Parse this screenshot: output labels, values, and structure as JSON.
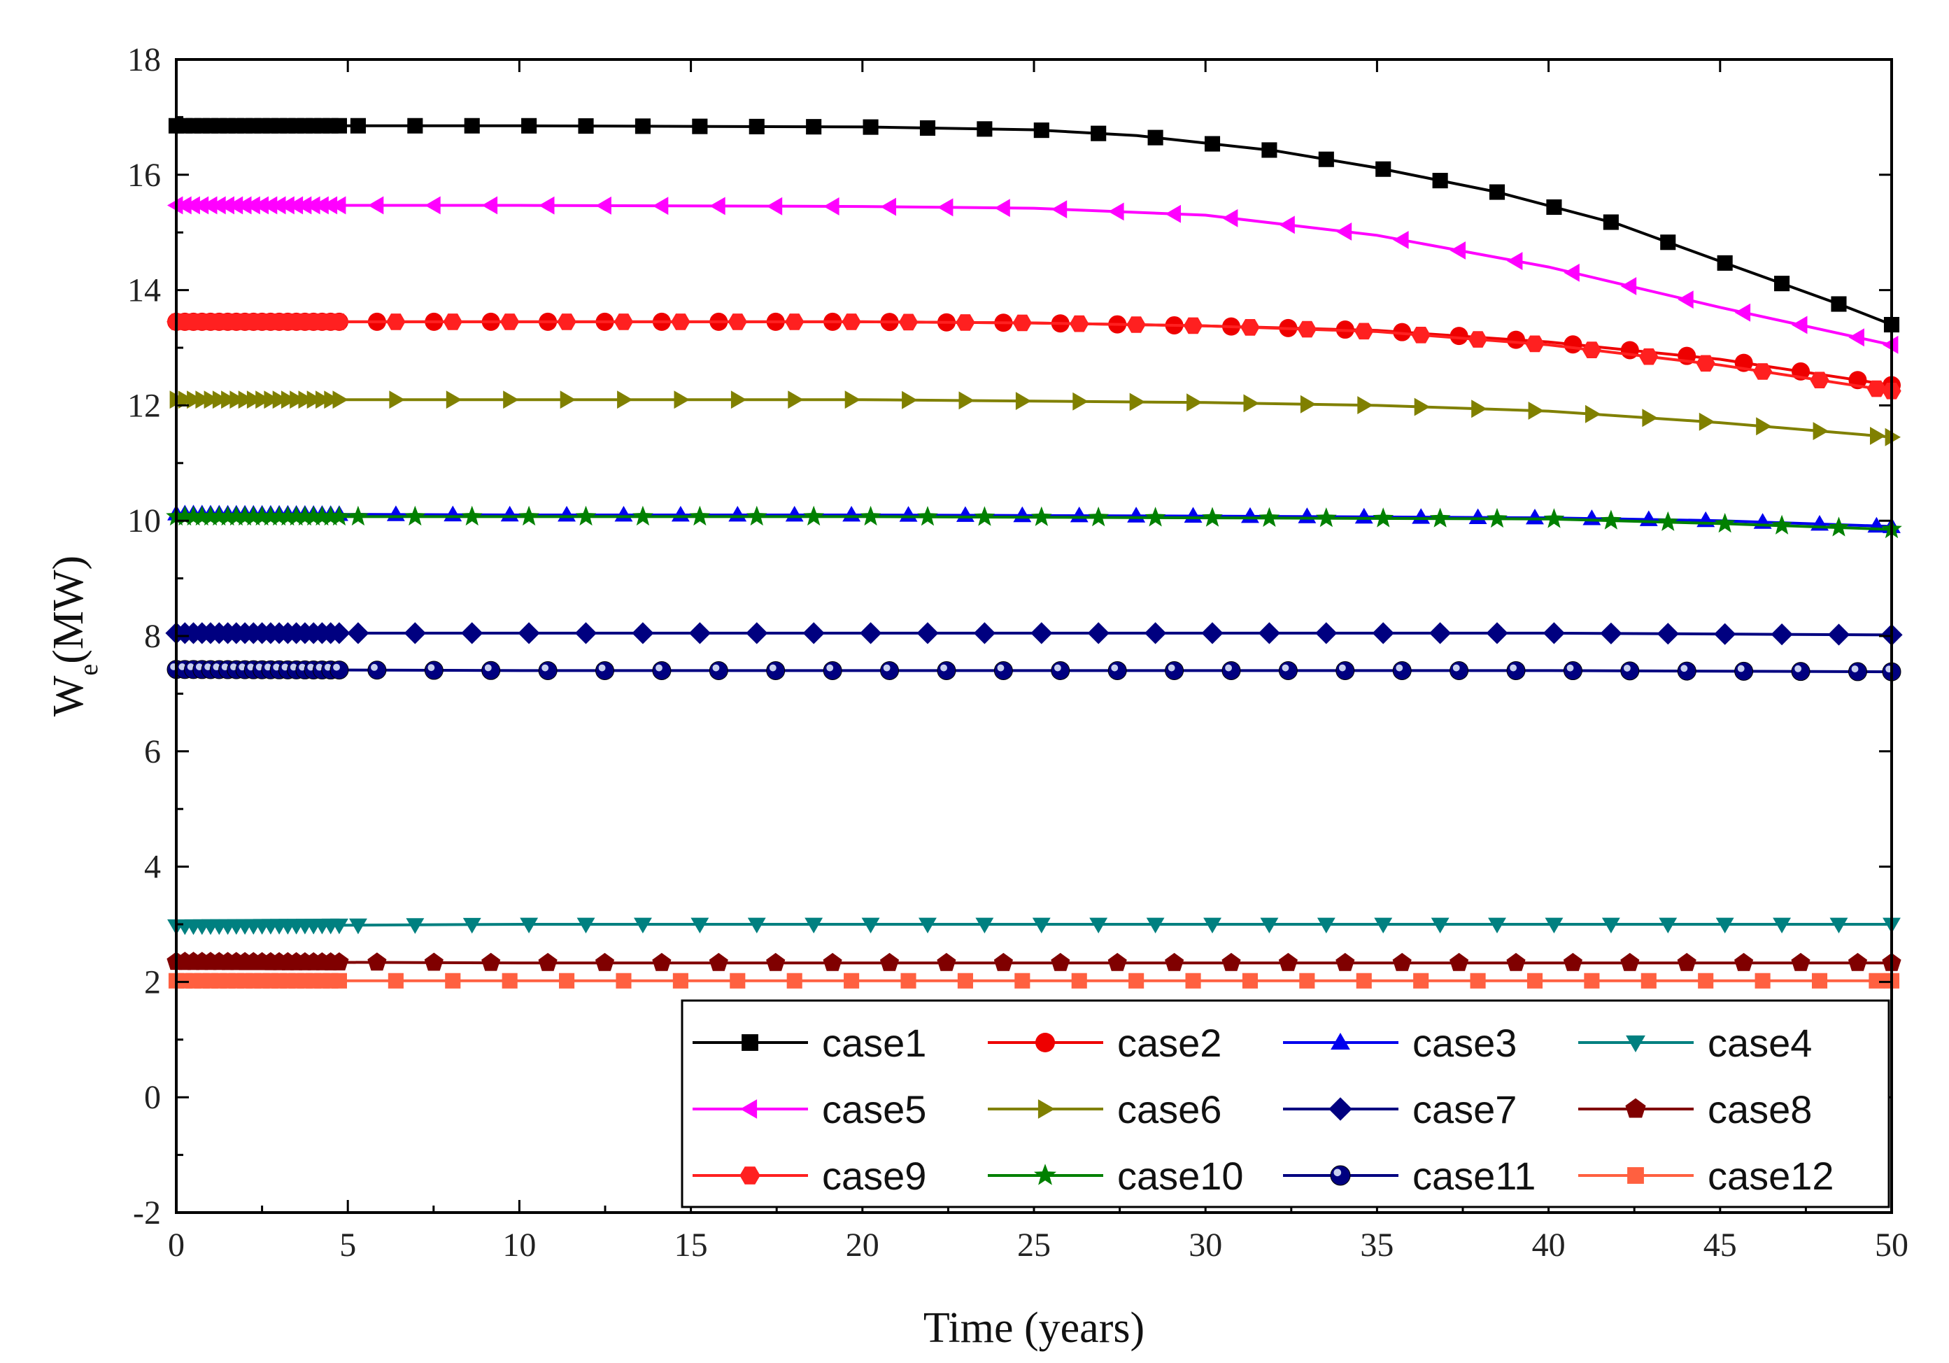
{
  "chart_data": {
    "type": "line",
    "title": "",
    "xlabel": "Time (years)",
    "ylabel": "(MW)",
    "ylabel_main": "W",
    "ylabel_sub": "e",
    "xlim": [
      0,
      50
    ],
    "ylim": [
      -2,
      18
    ],
    "xticks": [
      0,
      5,
      10,
      15,
      20,
      25,
      30,
      35,
      40,
      45,
      50
    ],
    "yticks": [
      -2,
      0,
      2,
      4,
      6,
      8,
      10,
      12,
      14,
      16,
      18
    ],
    "grid": false,
    "legend_position": "bottom-right",
    "series": [
      {
        "name": "case1",
        "color": "#000000",
        "marker": "square",
        "x": [
          0,
          10,
          20,
          25,
          28,
          30,
          32,
          35,
          38.5,
          42,
          45,
          48.5,
          50
        ],
        "y": [
          16.85,
          16.85,
          16.83,
          16.78,
          16.68,
          16.55,
          16.42,
          16.12,
          15.7,
          15.15,
          14.5,
          13.75,
          13.4
        ]
      },
      {
        "name": "case2",
        "color": "#ee0000",
        "marker": "circle",
        "x": [
          0,
          10,
          20,
          25,
          30,
          35,
          40,
          45,
          50
        ],
        "y": [
          13.45,
          13.45,
          13.45,
          13.43,
          13.38,
          13.3,
          13.1,
          12.8,
          12.35
        ]
      },
      {
        "name": "case3",
        "color": "#0000ee",
        "marker": "triangle-up",
        "x": [
          0,
          10,
          20,
          30,
          40,
          45,
          50
        ],
        "y": [
          10.12,
          10.1,
          10.1,
          10.08,
          10.05,
          10.0,
          9.9
        ]
      },
      {
        "name": "case4",
        "color": "#008080",
        "marker": "triangle-down",
        "x": [
          0,
          10,
          20,
          30,
          40,
          50
        ],
        "y": [
          2.97,
          3.0,
          3.0,
          3.0,
          3.0,
          3.0
        ]
      },
      {
        "name": "case5",
        "color": "#ff00ff",
        "marker": "triangle-left",
        "x": [
          0,
          10,
          20,
          25,
          30,
          35,
          40,
          45,
          50
        ],
        "y": [
          15.47,
          15.47,
          15.45,
          15.42,
          15.3,
          14.95,
          14.4,
          13.7,
          13.05
        ]
      },
      {
        "name": "case6",
        "color": "#808000",
        "marker": "triangle-right",
        "x": [
          0,
          10,
          20,
          30,
          35,
          40,
          45,
          50
        ],
        "y": [
          12.1,
          12.1,
          12.1,
          12.05,
          12.0,
          11.9,
          11.7,
          11.45
        ]
      },
      {
        "name": "case7",
        "color": "#000080",
        "marker": "diamond",
        "x": [
          0,
          10,
          20,
          30,
          40,
          50
        ],
        "y": [
          8.05,
          8.05,
          8.05,
          8.05,
          8.05,
          8.02
        ]
      },
      {
        "name": "case8",
        "color": "#800000",
        "marker": "pentagon",
        "x": [
          0,
          10,
          20,
          30,
          40,
          50
        ],
        "y": [
          2.35,
          2.33,
          2.33,
          2.33,
          2.33,
          2.33
        ]
      },
      {
        "name": "case9",
        "color": "#ff2020",
        "marker": "hexagon",
        "x": [
          0,
          10,
          20,
          25,
          30,
          35,
          40,
          45,
          50
        ],
        "y": [
          13.45,
          13.45,
          13.45,
          13.43,
          13.38,
          13.28,
          13.05,
          12.7,
          12.25
        ]
      },
      {
        "name": "case10",
        "color": "#008000",
        "marker": "star",
        "x": [
          0,
          10,
          20,
          30,
          40,
          45,
          50
        ],
        "y": [
          10.07,
          10.07,
          10.07,
          10.05,
          10.03,
          9.95,
          9.85
        ]
      },
      {
        "name": "case11",
        "color": "#000080",
        "marker": "sphere",
        "x": [
          0,
          10,
          20,
          30,
          40,
          50
        ],
        "y": [
          7.42,
          7.4,
          7.4,
          7.4,
          7.4,
          7.38
        ]
      },
      {
        "name": "case12",
        "color": "#ff6040",
        "marker": "square",
        "x": [
          0,
          10,
          20,
          30,
          40,
          50
        ],
        "y": [
          2.02,
          2.02,
          2.02,
          2.02,
          2.02,
          2.02
        ]
      }
    ]
  }
}
